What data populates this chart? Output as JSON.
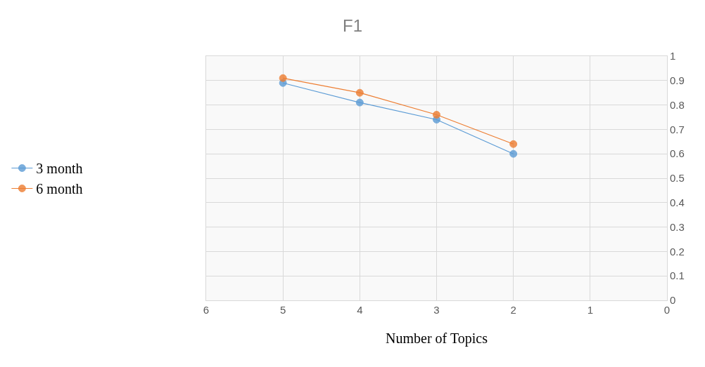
{
  "chart_data": {
    "type": "line",
    "title": "F1",
    "xlabel": "Number of Topics",
    "x": [
      5,
      4,
      3,
      2
    ],
    "series": [
      {
        "name": "3 month",
        "color": "#5b9bd5",
        "values": [
          0.89,
          0.81,
          0.74,
          0.6
        ]
      },
      {
        "name": "6 month",
        "color": "#ed7d31",
        "values": [
          0.91,
          0.85,
          0.76,
          0.64
        ]
      }
    ],
    "xlim": [
      6,
      0
    ],
    "xticks": [
      6,
      5,
      4,
      3,
      2,
      1,
      0
    ],
    "ylim": [
      0,
      1
    ],
    "yticks": [
      0,
      0.1,
      0.2,
      0.3,
      0.4,
      0.5,
      0.6,
      0.7,
      0.8,
      0.9,
      1
    ],
    "grid": true,
    "legend": "left",
    "marker": "circle",
    "line_style": "solid"
  }
}
